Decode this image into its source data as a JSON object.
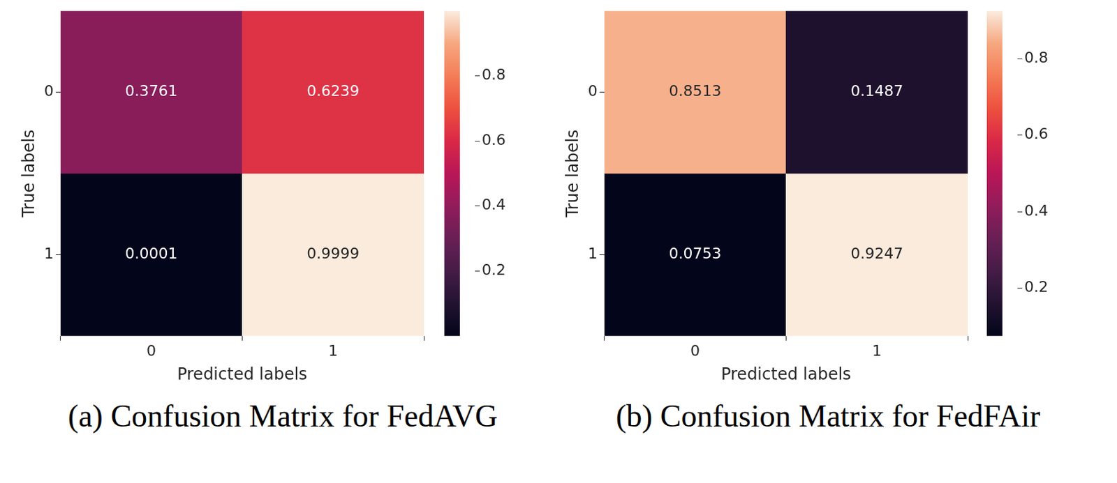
{
  "chart_data": [
    {
      "type": "heatmap",
      "title": "(a) Confusion Matrix for FedAVG",
      "x_label": "Predicted labels",
      "y_label": "True labels",
      "x_categories": [
        "0",
        "1"
      ],
      "y_categories": [
        "0",
        "1"
      ],
      "cells": [
        [
          0.3761,
          0.6239
        ],
        [
          0.0001,
          0.9999
        ]
      ],
      "data_labels": true,
      "colorbar": {
        "range": [
          0.0001,
          0.9999
        ],
        "ticks": [
          0.2,
          0.4,
          0.6,
          0.8
        ]
      }
    },
    {
      "type": "heatmap",
      "title": "(b) Confusion Matrix for FedFAir",
      "x_label": "Predicted labels",
      "y_label": "True labels",
      "x_categories": [
        "0",
        "1"
      ],
      "y_categories": [
        "0",
        "1"
      ],
      "cells": [
        [
          0.8513,
          0.1487
        ],
        [
          0.0753,
          0.9247
        ]
      ],
      "data_labels": true,
      "colorbar": {
        "range": [
          0.0753,
          0.9247
        ],
        "ticks": [
          0.2,
          0.4,
          0.6,
          0.8
        ]
      }
    }
  ]
}
